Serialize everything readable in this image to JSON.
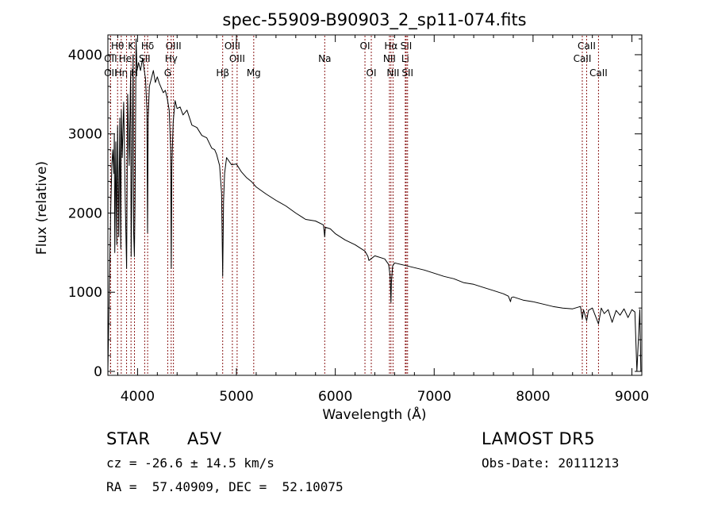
{
  "chart_data": {
    "type": "line",
    "title": "spec-55909-B90903_2_sp11-074.fits",
    "xlabel": "Wavelength (Å)",
    "ylabel": "Flux (relative)",
    "xlim": [
      3700,
      9100
    ],
    "ylim": [
      -50,
      4250
    ],
    "xticks": [
      4000,
      5000,
      6000,
      7000,
      8000,
      9000
    ],
    "yticks": [
      0,
      1000,
      2000,
      3000,
      4000
    ],
    "grid": false,
    "line_color": "#000000",
    "marker_color": "#8b1a1a",
    "series": [
      {
        "x": [
          3700,
          3703,
          3710,
          3720,
          3730,
          3740,
          3750,
          3760,
          3765,
          3770,
          3780,
          3790,
          3798,
          3810,
          3820,
          3830,
          3836,
          3845,
          3860,
          3875,
          3889,
          3900,
          3915,
          3930,
          3935,
          3945,
          3955,
          3961,
          3968,
          3975,
          3985,
          3995,
          4010,
          4030,
          4050,
          4080,
          4095,
          4101,
          4108,
          4120,
          4140,
          4160,
          4180,
          4200,
          4220,
          4240,
          4260,
          4280,
          4300,
          4320,
          4335,
          4341,
          4347,
          4360,
          4380,
          4400,
          4430,
          4460,
          4500,
          4550,
          4600,
          4650,
          4700,
          4750,
          4780,
          4800,
          4830,
          4850,
          4861,
          4870,
          4880,
          4900,
          4950,
          5000,
          5050,
          5100,
          5150,
          5200,
          5300,
          5400,
          5500,
          5600,
          5700,
          5800,
          5880,
          5893,
          5900,
          5950,
          6000,
          6100,
          6200,
          6300,
          6330,
          6340,
          6400,
          6500,
          6540,
          6555,
          6563,
          6568,
          6580,
          6600,
          6700,
          6800,
          6900,
          7000,
          7100,
          7200,
          7300,
          7400,
          7500,
          7600,
          7700,
          7750,
          7772,
          7780,
          7800,
          7900,
          8000,
          8100,
          8200,
          8300,
          8400,
          8480,
          8498,
          8510,
          8542,
          8560,
          8600,
          8662,
          8690,
          8720,
          8760,
          8800,
          8840,
          8880,
          8920,
          8960,
          9000,
          9030,
          9050,
          9080,
          9090
        ],
        "y": [
          0,
          250,
          700,
          1450,
          2100,
          2600,
          2800,
          2500,
          3000,
          1500,
          2900,
          1600,
          3100,
          1700,
          3200,
          1550,
          3300,
          2700,
          3400,
          2200,
          1300,
          3500,
          2600,
          3800,
          1450,
          2600,
          4000,
          1750,
          1450,
          2200,
          4200,
          3800,
          3900,
          3800,
          3950,
          3700,
          3300,
          1750,
          3200,
          3600,
          3700,
          3800,
          3650,
          3720,
          3640,
          3580,
          3520,
          3550,
          3450,
          3300,
          2800,
          1300,
          2600,
          3150,
          3420,
          3320,
          3340,
          3240,
          3300,
          3110,
          3080,
          2980,
          2950,
          2820,
          2800,
          2740,
          2600,
          2250,
          1200,
          2150,
          2500,
          2700,
          2610,
          2620,
          2520,
          2450,
          2400,
          2330,
          2240,
          2160,
          2090,
          2000,
          1920,
          1900,
          1850,
          1700,
          1820,
          1800,
          1740,
          1660,
          1600,
          1520,
          1450,
          1400,
          1460,
          1420,
          1350,
          1200,
          870,
          1130,
          1330,
          1370,
          1340,
          1310,
          1280,
          1240,
          1200,
          1170,
          1120,
          1100,
          1060,
          1020,
          980,
          950,
          880,
          930,
          940,
          900,
          880,
          850,
          820,
          800,
          790,
          820,
          660,
          780,
          640,
          770,
          800,
          600,
          800,
          730,
          780,
          620,
          770,
          710,
          790,
          680,
          780,
          750,
          0,
          780,
          0
        ]
      }
    ],
    "lines": [
      {
        "label": "Hθ",
        "x": 3798,
        "row": 1
      },
      {
        "label": "OII",
        "x": 3727,
        "row": 2
      },
      {
        "label": "OII",
        "x": 3727,
        "row": 3
      },
      {
        "label": "Hη",
        "x": 3835,
        "row": 3
      },
      {
        "label": "HeI",
        "x": 3889,
        "row": 2
      },
      {
        "label": "K",
        "x": 3934,
        "row": 1
      },
      {
        "label": "H",
        "x": 3969,
        "row": 3
      },
      {
        "label": "SII",
        "x": 4072,
        "row": 2
      },
      {
        "label": "Hδ",
        "x": 4102,
        "row": 1
      },
      {
        "label": "OIII",
        "x": 4363,
        "row": 1
      },
      {
        "label": "Hγ",
        "x": 4340,
        "row": 2
      },
      {
        "label": "G",
        "x": 4305,
        "row": 3
      },
      {
        "label": "OIII",
        "x": 4959,
        "row": 1
      },
      {
        "label": "OIII",
        "x": 5007,
        "row": 2
      },
      {
        "label": "Hβ",
        "x": 4861,
        "row": 3
      },
      {
        "label": "Mg",
        "x": 5175,
        "row": 3
      },
      {
        "label": "Na",
        "x": 5893,
        "row": 2
      },
      {
        "label": "OI",
        "x": 6300,
        "row": 1
      },
      {
        "label": "OI",
        "x": 6364,
        "row": 3
      },
      {
        "label": "Hα",
        "x": 6563,
        "row": 1
      },
      {
        "label": "NII",
        "x": 6548,
        "row": 2
      },
      {
        "label": "NII",
        "x": 6584,
        "row": 3
      },
      {
        "label": "SII",
        "x": 6717,
        "row": 1
      },
      {
        "label": "Li",
        "x": 6708,
        "row": 2
      },
      {
        "label": "SII",
        "x": 6731,
        "row": 3
      },
      {
        "label": "CaII",
        "x": 8542,
        "row": 1
      },
      {
        "label": "CaII",
        "x": 8498,
        "row": 2
      },
      {
        "label": "CaII",
        "x": 8662,
        "row": 3
      }
    ]
  },
  "info": {
    "object_class": "STAR",
    "subclass": "A5V",
    "survey": "LAMOST DR5",
    "redshift": "cz = -26.6 ± 14.5 km/s",
    "obs_date": "Obs-Date: 20111213",
    "coords": "RA =  57.40909, DEC =  52.10075"
  }
}
